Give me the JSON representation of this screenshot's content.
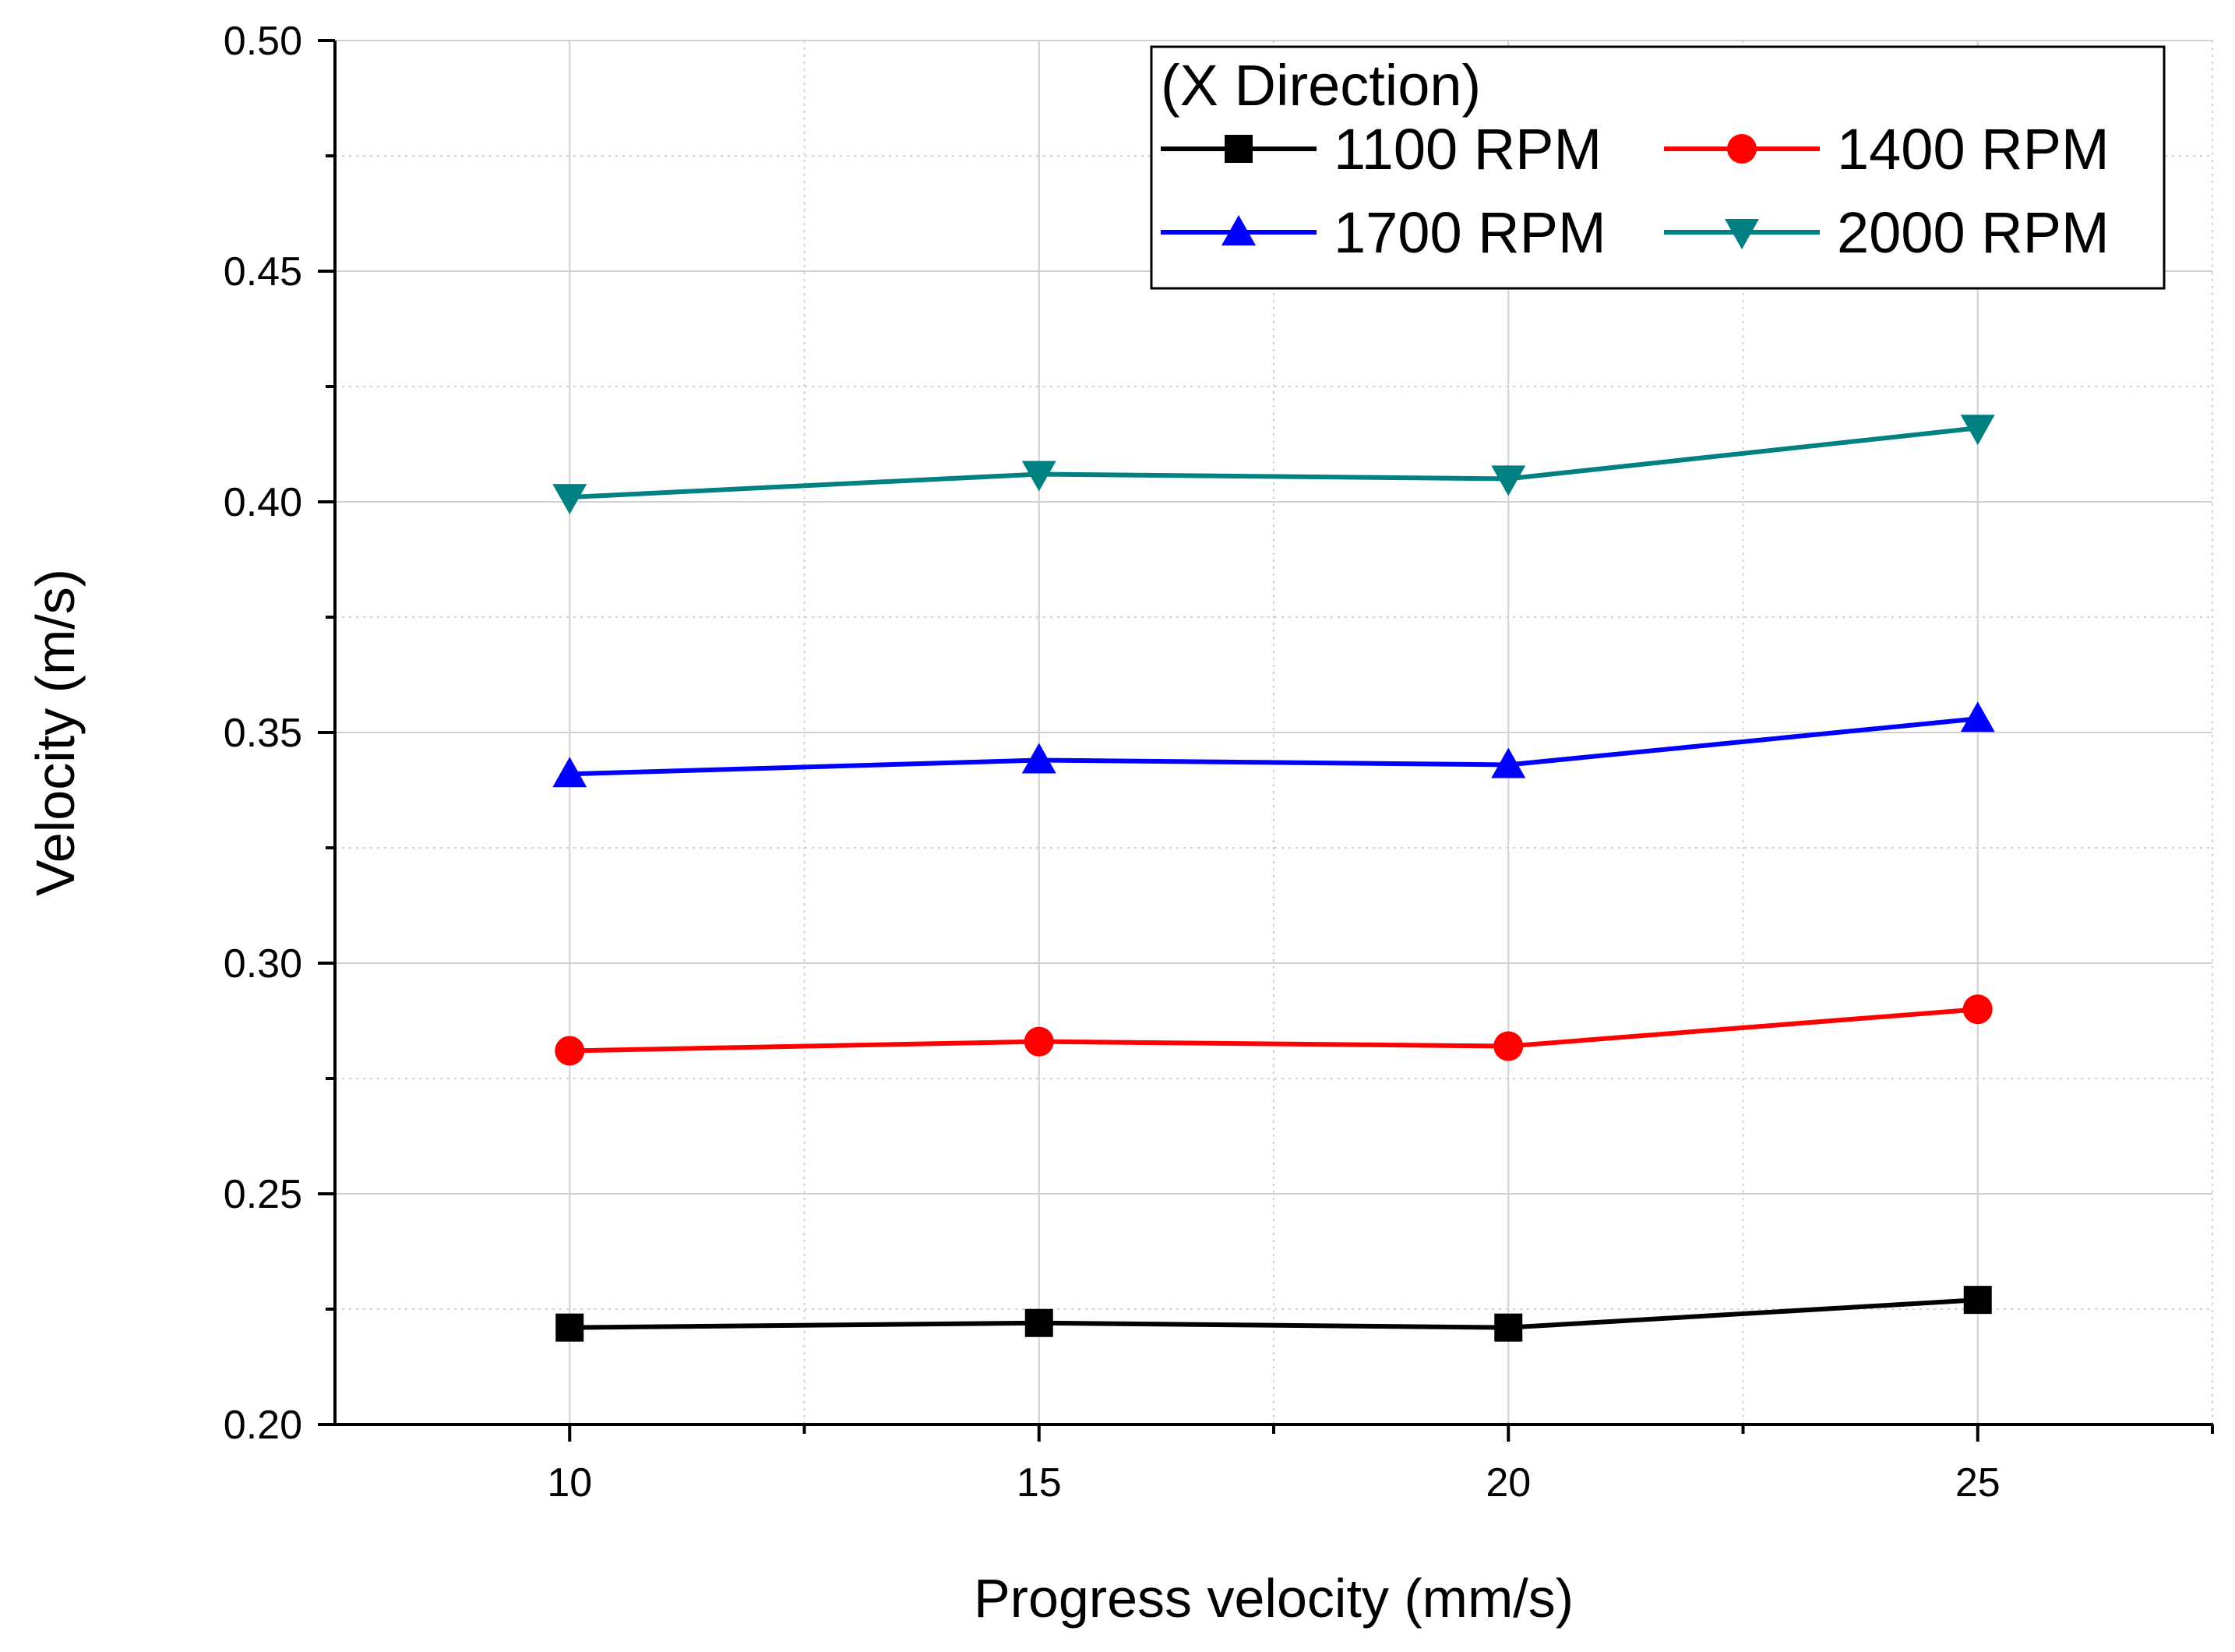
{
  "chart_data": {
    "type": "line",
    "xlabel": "Progress velocity (mm/s)",
    "ylabel": "Velocity (m/s)",
    "xlim": [
      7.5,
      27.5
    ],
    "ylim": [
      0.2,
      0.5
    ],
    "x_ticks": [
      10,
      15,
      20,
      25
    ],
    "y_ticks": [
      "0.20",
      "0.25",
      "0.30",
      "0.35",
      "0.40",
      "0.45",
      "0.50"
    ],
    "grid": true,
    "legend_title": "(X Direction)",
    "legend_position": "top-right",
    "x": [
      10,
      15,
      20,
      25
    ],
    "series": [
      {
        "name": "1100 RPM",
        "color": "#000000",
        "marker": "square",
        "values": [
          0.221,
          0.222,
          0.221,
          0.227
        ]
      },
      {
        "name": "1400 RPM",
        "color": "#ff0000",
        "marker": "circle",
        "values": [
          0.281,
          0.283,
          0.282,
          0.29
        ]
      },
      {
        "name": "1700 RPM",
        "color": "#0000ff",
        "marker": "triangle-up",
        "values": [
          0.341,
          0.344,
          0.343,
          0.353
        ]
      },
      {
        "name": "2000 RPM",
        "color": "#008080",
        "marker": "triangle-down",
        "values": [
          0.401,
          0.406,
          0.405,
          0.416
        ]
      }
    ]
  }
}
